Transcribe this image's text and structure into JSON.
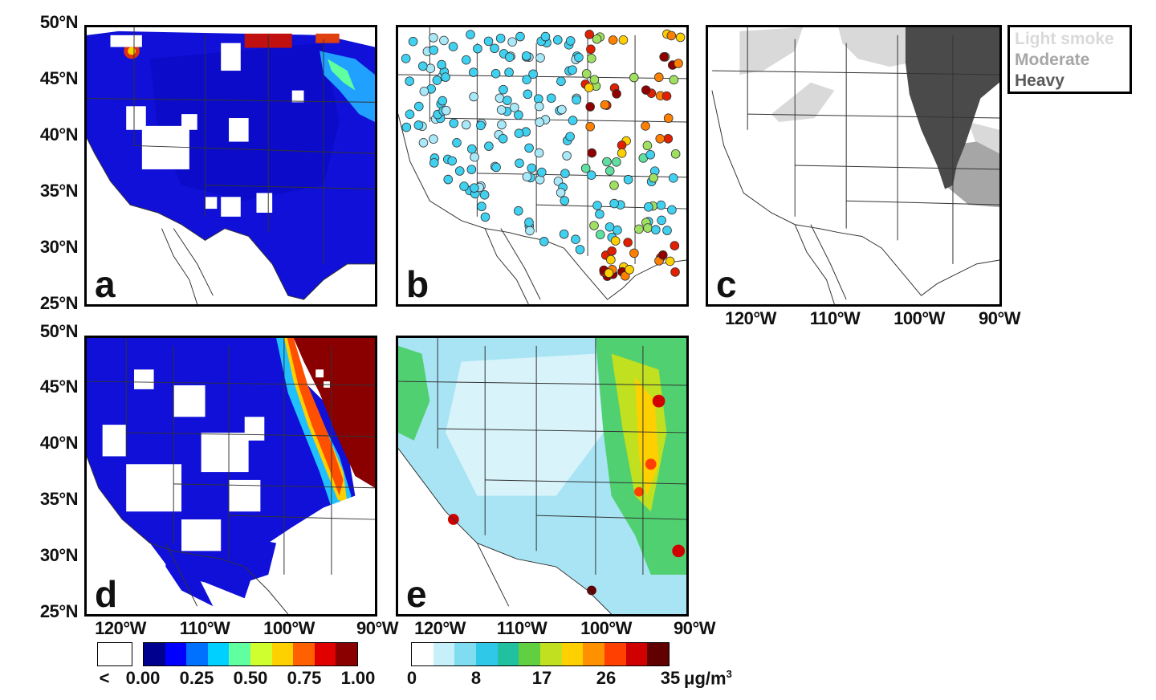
{
  "lat_labels": [
    "50°N",
    "45°N",
    "40°N",
    "35°N",
    "30°N",
    "25°N"
  ],
  "lon_labels_top": [
    "120°W",
    "110°W",
    "100°W",
    "90°W"
  ],
  "lon_labels_d": [
    "120°W",
    "110°W",
    "100°W",
    "90°W"
  ],
  "lon_labels_e": [
    "120°W",
    "110°W",
    "100°W",
    "90°W"
  ],
  "panels": {
    "a": {
      "label": "a"
    },
    "b": {
      "label": "b"
    },
    "c": {
      "label": "c"
    },
    "d": {
      "label": "d"
    },
    "e": {
      "label": "e"
    }
  },
  "smoke_legend": {
    "items": [
      {
        "label": "Light smoke",
        "color": "#d9d9d9"
      },
      {
        "label": "Moderate",
        "color": "#a6a6a6"
      },
      {
        "label": "Heavy",
        "color": "#4a4a4a"
      }
    ]
  },
  "colorbar_fraction": {
    "missing_label": "<",
    "ticks": [
      "0.00",
      "0.25",
      "0.50",
      "0.75",
      "1.00"
    ],
    "min": 0.0,
    "max": 1.0,
    "colors": [
      "#00008f",
      "#0000ff",
      "#0070ff",
      "#00d0ff",
      "#60ffa0",
      "#d0ff30",
      "#ffd000",
      "#ff6000",
      "#e00000",
      "#8a0000"
    ]
  },
  "colorbar_pm25": {
    "ticks": [
      "0",
      "8",
      "17",
      "26",
      "35"
    ],
    "unit_prefix": "μg/m",
    "unit_power": "3",
    "min": 0,
    "max": 35,
    "colors": [
      "#ffffff",
      "#c8f0fa",
      "#80dcf0",
      "#30c8e8",
      "#20c0a0",
      "#60d040",
      "#c0e020",
      "#ffd000",
      "#ff9000",
      "#ff4000",
      "#d00000",
      "#600000"
    ]
  }
}
